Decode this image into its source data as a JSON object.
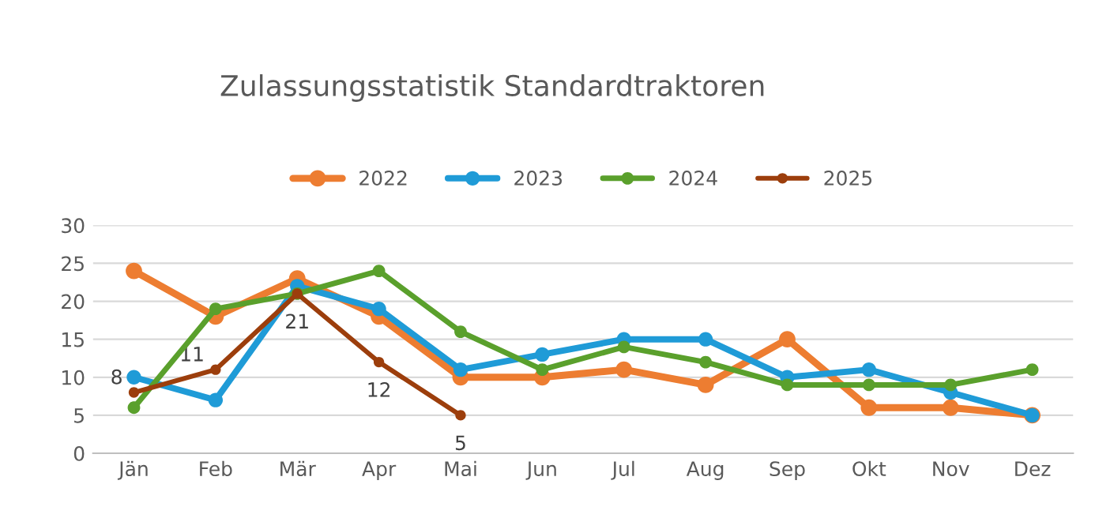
{
  "chart_data": {
    "type": "line",
    "title": "Zulassungsstatistik Standardtraktoren",
    "categories": [
      "Jän",
      "Feb",
      "Mär",
      "Apr",
      "Mai",
      "Jun",
      "Jul",
      "Aug",
      "Sep",
      "Okt",
      "Nov",
      "Dez"
    ],
    "series": [
      {
        "name": "2022",
        "color": "#ed7d31",
        "values": [
          24,
          18,
          23,
          18,
          10,
          10,
          11,
          9,
          15,
          6,
          6,
          5
        ]
      },
      {
        "name": "2023",
        "color": "#1f9bd7",
        "values": [
          10,
          7,
          22,
          19,
          11,
          13,
          15,
          15,
          10,
          11,
          8,
          5
        ]
      },
      {
        "name": "2024",
        "color": "#5aa02c",
        "values": [
          6,
          19,
          21,
          24,
          16,
          11,
          14,
          12,
          9,
          9,
          9,
          11
        ]
      },
      {
        "name": "2025",
        "color": "#9c3e0c",
        "values": [
          8,
          11,
          21,
          12,
          5,
          null,
          null,
          null,
          null,
          null,
          null,
          null
        ],
        "value_labels": [
          "8",
          "11",
          "21",
          "12",
          "5",
          null,
          null,
          null,
          null,
          null,
          null,
          null
        ]
      }
    ],
    "ylim": [
      0,
      30
    ],
    "yticks": [
      0,
      5,
      10,
      15,
      20,
      25,
      30
    ],
    "grid": "y",
    "legend": "top",
    "marker": "circle",
    "line_style": "solid"
  }
}
